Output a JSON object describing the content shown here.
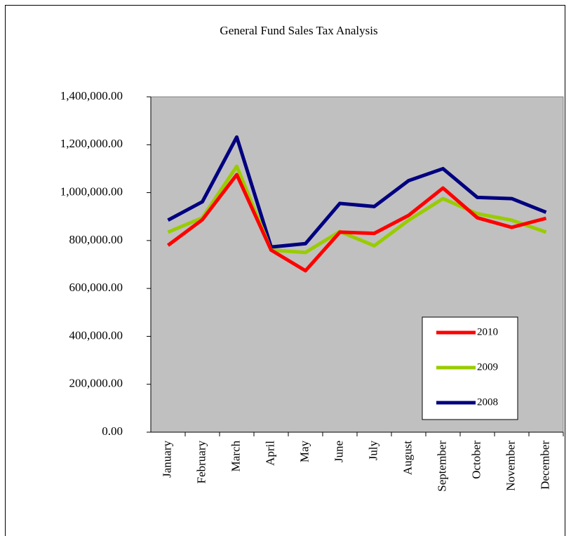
{
  "chart_data": {
    "type": "line",
    "title": "General Fund Sales Tax Analysis",
    "categories": [
      "January",
      "February",
      "March",
      "April",
      "May",
      "June",
      "July",
      "August",
      "September",
      "October",
      "November",
      "December"
    ],
    "series": [
      {
        "name": "2010",
        "color": "#ff0000",
        "values": [
          780000,
          887000,
          1075000,
          760000,
          674000,
          835000,
          830000,
          905000,
          1019000,
          895000,
          855000,
          893000
        ]
      },
      {
        "name": "2009",
        "color": "#99cc00",
        "values": [
          835000,
          895000,
          1110000,
          760000,
          750000,
          838000,
          778000,
          885000,
          975000,
          912000,
          885000,
          835000
        ]
      },
      {
        "name": "2008",
        "color": "#000080",
        "values": [
          885000,
          962000,
          1232000,
          773000,
          787000,
          955000,
          942000,
          1050000,
          1100000,
          980000,
          975000,
          918000
        ]
      }
    ],
    "ylim": [
      0,
      1400000
    ],
    "yticks": [
      {
        "value": 0,
        "label": "0.00"
      },
      {
        "value": 200000,
        "label": "200,000.00"
      },
      {
        "value": 400000,
        "label": "400,000.00"
      },
      {
        "value": 600000,
        "label": "600,000.00"
      },
      {
        "value": 800000,
        "label": "800,000.00"
      },
      {
        "value": 1000000,
        "label": "1,000,000.00"
      },
      {
        "value": 1200000,
        "label": "1,200,000.00"
      },
      {
        "value": 1400000,
        "label": "1,400,000.00"
      }
    ],
    "plot_background": "#c0c0c0"
  }
}
